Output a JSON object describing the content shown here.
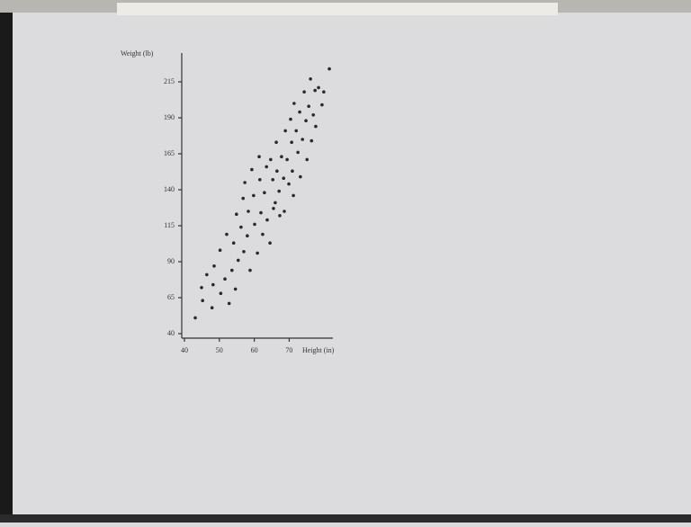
{
  "chart_data": {
    "type": "scatter",
    "x_label": "Height (in)",
    "y_label": "Weight (lb)",
    "xlim": [
      40,
      82
    ],
    "ylim": [
      40,
      230
    ],
    "xticks": [
      40,
      50,
      60,
      70
    ],
    "yticks": [
      40,
      65,
      90,
      115,
      140,
      165,
      190,
      215
    ],
    "color": "#2a2a2a",
    "x": [
      43.1,
      44.9,
      45.2,
      46.4,
      47.9,
      48.2,
      48.5,
      50.2,
      50.4,
      51.6,
      52.1,
      52.8,
      53.6,
      54.1,
      54.6,
      54.9,
      55.4,
      56.2,
      56.8,
      57.0,
      57.3,
      58.0,
      58.3,
      58.8,
      59.3,
      59.8,
      60.1,
      60.9,
      61.4,
      61.6,
      61.9,
      62.4,
      62.9,
      63.5,
      63.7,
      64.5,
      64.7,
      65.3,
      65.5,
      66.0,
      66.3,
      66.5,
      67.1,
      67.3,
      67.8,
      68.4,
      68.6,
      68.9,
      69.4,
      69.9,
      70.4,
      70.7,
      70.9,
      71.2,
      71.4,
      72.0,
      72.5,
      73.0,
      73.2,
      73.8,
      74.3,
      74.8,
      75.1,
      75.6,
      76.1,
      76.4,
      76.9,
      77.4,
      77.6,
      78.4,
      79.4,
      79.9,
      81.5
    ],
    "values": [
      51,
      72,
      63,
      81,
      58,
      74,
      87,
      98,
      68,
      78,
      109,
      61,
      84,
      103,
      71,
      123,
      91,
      114,
      134,
      97,
      145,
      108,
      125,
      84,
      154,
      136,
      116,
      96,
      163,
      147,
      124,
      109,
      138,
      156,
      119,
      103,
      161,
      147,
      127,
      131,
      173,
      153,
      139,
      122,
      163,
      148,
      125,
      181,
      161,
      144,
      189,
      173,
      153,
      136,
      200,
      181,
      166,
      194,
      149,
      175,
      208,
      188,
      161,
      198,
      217,
      174,
      192,
      209,
      184,
      211,
      199,
      208,
      224
    ]
  }
}
